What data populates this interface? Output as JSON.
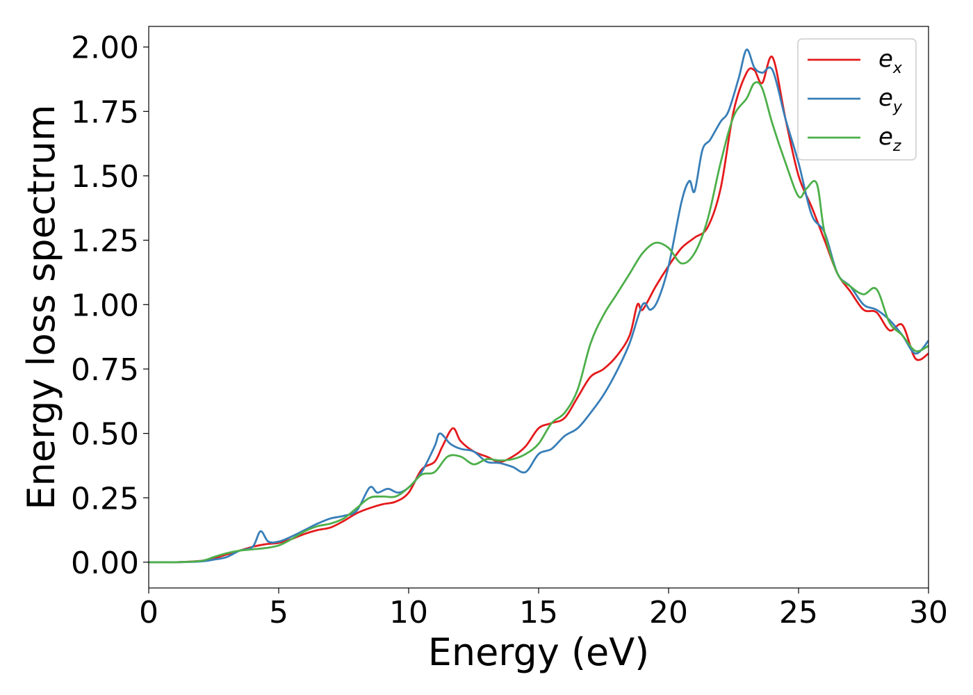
{
  "chart_data": {
    "type": "line",
    "xlabel": "Energy (eV)",
    "ylabel": "Energy loss spectrum",
    "xlim": [
      0,
      30
    ],
    "ylim": [
      -0.1,
      2.08
    ],
    "xticks": [
      0,
      5,
      10,
      15,
      20,
      25,
      30
    ],
    "yticks": [
      0.0,
      0.25,
      0.5,
      0.75,
      1.0,
      1.25,
      1.5,
      1.75,
      2.0
    ],
    "xtick_labels": [
      "0",
      "5",
      "10",
      "15",
      "20",
      "25",
      "30"
    ],
    "ytick_labels": [
      "0.00",
      "0.25",
      "0.50",
      "0.75",
      "1.00",
      "1.25",
      "1.50",
      "1.75",
      "2.00"
    ],
    "grid": false,
    "legend_position": "top-right",
    "series": [
      {
        "name_base": "e",
        "name_sub": "x",
        "color": "#e41a1c",
        "x": [
          0,
          1,
          2,
          2.5,
          3,
          3.5,
          4,
          4.5,
          5,
          5.5,
          6,
          6.5,
          7,
          7.5,
          8,
          8.5,
          9,
          9.5,
          10,
          10.5,
          11,
          11.3,
          11.7,
          12,
          12.5,
          13,
          13.5,
          14,
          14.5,
          15,
          15.5,
          16,
          16.5,
          17,
          17.5,
          18,
          18.5,
          18.8,
          19,
          19.5,
          20,
          20.5,
          21,
          21.5,
          22,
          22.5,
          23,
          23.3,
          23.6,
          24,
          24.5,
          25,
          25.5,
          26,
          26.5,
          27,
          27.5,
          28,
          28.5,
          29,
          29.5,
          30
        ],
        "y": [
          0,
          0,
          0.005,
          0.015,
          0.03,
          0.045,
          0.06,
          0.07,
          0.075,
          0.09,
          0.11,
          0.125,
          0.135,
          0.16,
          0.19,
          0.21,
          0.225,
          0.235,
          0.27,
          0.36,
          0.39,
          0.45,
          0.52,
          0.47,
          0.43,
          0.41,
          0.39,
          0.41,
          0.45,
          0.52,
          0.54,
          0.56,
          0.64,
          0.72,
          0.75,
          0.8,
          0.88,
          1.0,
          0.98,
          1.07,
          1.15,
          1.22,
          1.26,
          1.3,
          1.45,
          1.75,
          1.9,
          1.91,
          1.86,
          1.96,
          1.72,
          1.5,
          1.38,
          1.25,
          1.12,
          1.05,
          0.98,
          0.97,
          0.9,
          0.92,
          0.79,
          0.81
        ]
      },
      {
        "name_base": "e",
        "name_sub": "y",
        "color": "#377eb8",
        "x": [
          0,
          1,
          2,
          2.5,
          3,
          3.5,
          4,
          4.3,
          4.6,
          5,
          5.5,
          6,
          6.5,
          7,
          7.5,
          8,
          8.5,
          8.8,
          9.2,
          9.6,
          10,
          10.5,
          11,
          11.2,
          11.6,
          12,
          12.5,
          13,
          13.5,
          14,
          14.5,
          15,
          15.5,
          16,
          16.5,
          17,
          17.5,
          18,
          18.5,
          19,
          19.3,
          19.6,
          20,
          20.5,
          20.8,
          21,
          21.3,
          21.6,
          22,
          22.3,
          22.7,
          23,
          23.3,
          23.6,
          24,
          24.5,
          25,
          25.5,
          26,
          26.5,
          27,
          27.5,
          28,
          28.5,
          29,
          29.5,
          30
        ],
        "y": [
          0,
          0,
          0.003,
          0.01,
          0.02,
          0.045,
          0.06,
          0.12,
          0.08,
          0.08,
          0.1,
          0.125,
          0.15,
          0.17,
          0.18,
          0.2,
          0.29,
          0.27,
          0.285,
          0.27,
          0.29,
          0.35,
          0.45,
          0.5,
          0.46,
          0.44,
          0.43,
          0.39,
          0.385,
          0.37,
          0.35,
          0.42,
          0.44,
          0.49,
          0.52,
          0.58,
          0.65,
          0.74,
          0.85,
          1.0,
          0.98,
          1.02,
          1.15,
          1.4,
          1.48,
          1.44,
          1.6,
          1.64,
          1.71,
          1.75,
          1.88,
          1.99,
          1.92,
          1.9,
          1.91,
          1.72,
          1.55,
          1.35,
          1.28,
          1.12,
          1.07,
          1.0,
          0.98,
          0.94,
          0.88,
          0.81,
          0.86
        ]
      },
      {
        "name_base": "e",
        "name_sub": "z",
        "color": "#4daf4a",
        "x": [
          0,
          1,
          2,
          2.5,
          3,
          3.5,
          4,
          4.5,
          5,
          5.5,
          6,
          6.5,
          7,
          7.5,
          8,
          8.5,
          9,
          9.5,
          10,
          10.5,
          11,
          11.5,
          12,
          12.5,
          13,
          13.5,
          14,
          14.5,
          15,
          15.5,
          16,
          16.5,
          17,
          17.5,
          18,
          18.5,
          19,
          19.5,
          20,
          20.5,
          21,
          21.5,
          22,
          22.5,
          23,
          23.3,
          23.6,
          24,
          24.5,
          25,
          25.3,
          25.7,
          26,
          26.5,
          27,
          27.5,
          28,
          28.5,
          29,
          29.5,
          30
        ],
        "y": [
          0,
          0,
          0.005,
          0.02,
          0.035,
          0.045,
          0.05,
          0.055,
          0.065,
          0.09,
          0.12,
          0.14,
          0.15,
          0.17,
          0.21,
          0.25,
          0.255,
          0.255,
          0.29,
          0.34,
          0.35,
          0.41,
          0.41,
          0.38,
          0.4,
          0.395,
          0.4,
          0.42,
          0.46,
          0.54,
          0.58,
          0.67,
          0.85,
          0.96,
          1.04,
          1.12,
          1.2,
          1.24,
          1.22,
          1.16,
          1.2,
          1.33,
          1.55,
          1.73,
          1.8,
          1.86,
          1.84,
          1.7,
          1.55,
          1.42,
          1.45,
          1.47,
          1.28,
          1.12,
          1.07,
          1.04,
          1.06,
          0.93,
          0.88,
          0.82,
          0.84
        ]
      }
    ]
  }
}
